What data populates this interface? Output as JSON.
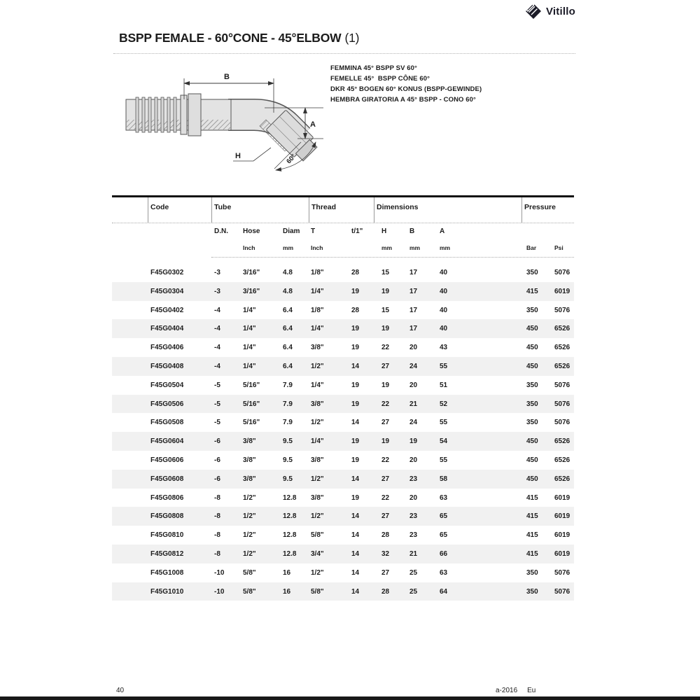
{
  "brand": {
    "name": "Vitillo"
  },
  "page": {
    "title": "BSPP FEMALE - 60°CONE - 45°ELBOW",
    "title_suffix": "(1)",
    "descriptions": [
      "FEMMINA 45° BSPP SV 60°",
      "FEMELLE 45°  BSPP CÔNE 60°",
      "DKR 45° BOGEN 60° KONUS (BSPP-GEWINDE)",
      "HEMBRA GIRATORIA A 45° BSPP - CONO 60°"
    ],
    "footer": {
      "page_number": "40",
      "edition": "a-2016",
      "region": "Eu"
    }
  },
  "drawing": {
    "dim_b": "B",
    "dim_a": "A",
    "dim_h": "H",
    "angle": "60°"
  },
  "colors": {
    "text": "#1c1c1c",
    "row_shade": "#f1f1f1",
    "rule": "#a9a9a9"
  },
  "table": {
    "groups": [
      "Code",
      "Tube",
      "Thread",
      "Dimensions",
      "Pressure"
    ],
    "subheaders": [
      "D.N.",
      "Hose",
      "Diam",
      "T",
      "t/1\"",
      "H",
      "B",
      "A"
    ],
    "units": {
      "hose": "Inch",
      "diam": "mm",
      "t": "Inch",
      "h": "mm",
      "b": "mm",
      "a": "mm",
      "bar": "Bar",
      "psi": "Psi"
    },
    "rows": [
      [
        "F45G0302",
        "-3",
        "3/16\"",
        "4.8",
        "1/8\"",
        "28",
        "15",
        "17",
        "40",
        "350",
        "5076"
      ],
      [
        "F45G0304",
        "-3",
        "3/16\"",
        "4.8",
        "1/4\"",
        "19",
        "19",
        "17",
        "40",
        "415",
        "6019"
      ],
      [
        "F45G0402",
        "-4",
        "1/4\"",
        "6.4",
        "1/8\"",
        "28",
        "15",
        "17",
        "40",
        "350",
        "5076"
      ],
      [
        "F45G0404",
        "-4",
        "1/4\"",
        "6.4",
        "1/4\"",
        "19",
        "19",
        "17",
        "40",
        "450",
        "6526"
      ],
      [
        "F45G0406",
        "-4",
        "1/4\"",
        "6.4",
        "3/8\"",
        "19",
        "22",
        "20",
        "43",
        "450",
        "6526"
      ],
      [
        "F45G0408",
        "-4",
        "1/4\"",
        "6.4",
        "1/2\"",
        "14",
        "27",
        "24",
        "55",
        "450",
        "6526"
      ],
      [
        "F45G0504",
        "-5",
        "5/16\"",
        "7.9",
        "1/4\"",
        "19",
        "19",
        "20",
        "51",
        "350",
        "5076"
      ],
      [
        "F45G0506",
        "-5",
        "5/16\"",
        "7.9",
        "3/8\"",
        "19",
        "22",
        "21",
        "52",
        "350",
        "5076"
      ],
      [
        "F45G0508",
        "-5",
        "5/16\"",
        "7.9",
        "1/2\"",
        "14",
        "27",
        "24",
        "55",
        "350",
        "5076"
      ],
      [
        "F45G0604",
        "-6",
        "3/8\"",
        "9.5",
        "1/4\"",
        "19",
        "19",
        "19",
        "54",
        "450",
        "6526"
      ],
      [
        "F45G0606",
        "-6",
        "3/8\"",
        "9.5",
        "3/8\"",
        "19",
        "22",
        "20",
        "55",
        "450",
        "6526"
      ],
      [
        "F45G0608",
        "-6",
        "3/8\"",
        "9.5",
        "1/2\"",
        "14",
        "27",
        "23",
        "58",
        "450",
        "6526"
      ],
      [
        "F45G0806",
        "-8",
        "1/2\"",
        "12.8",
        "3/8\"",
        "19",
        "22",
        "20",
        "63",
        "415",
        "6019"
      ],
      [
        "F45G0808",
        "-8",
        "1/2\"",
        "12.8",
        "1/2\"",
        "14",
        "27",
        "23",
        "65",
        "415",
        "6019"
      ],
      [
        "F45G0810",
        "-8",
        "1/2\"",
        "12.8",
        "5/8\"",
        "14",
        "28",
        "23",
        "65",
        "415",
        "6019"
      ],
      [
        "F45G0812",
        "-8",
        "1/2\"",
        "12.8",
        "3/4\"",
        "14",
        "32",
        "21",
        "66",
        "415",
        "6019"
      ],
      [
        "F45G1008",
        "-10",
        "5/8\"",
        "16",
        "1/2\"",
        "14",
        "27",
        "25",
        "63",
        "350",
        "5076"
      ],
      [
        "F45G1010",
        "-10",
        "5/8\"",
        "16",
        "5/8\"",
        "14",
        "28",
        "25",
        "64",
        "350",
        "5076"
      ]
    ]
  }
}
